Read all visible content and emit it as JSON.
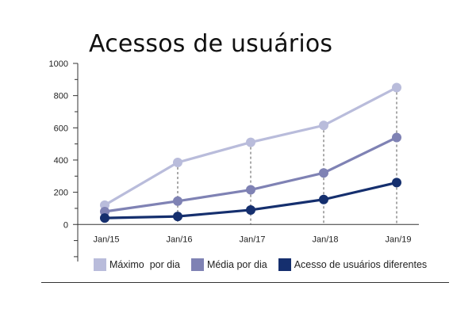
{
  "chart_data": {
    "type": "line",
    "title": "Acessos de usuários",
    "xlabel": "",
    "ylabel": "",
    "categories": [
      "Jan/15",
      "Jan/16",
      "Jan/17",
      "Jan/18",
      "Jan/19"
    ],
    "yticks": [
      "0",
      "200",
      "400",
      "600",
      "800",
      "1000"
    ],
    "ylim": [
      -230,
      1000
    ],
    "grid": false,
    "dashed_drop_lines": true,
    "legend_position": "bottom",
    "series": [
      {
        "name": "Máximo  por dia",
        "color": "#b9bcdb",
        "values": [
          120,
          385,
          510,
          615,
          850
        ]
      },
      {
        "name": "Média por dia",
        "color": "#7f82b4",
        "values": [
          80,
          145,
          215,
          320,
          540
        ]
      },
      {
        "name": "Acesso de usuários diferentes",
        "color": "#152f6e",
        "values": [
          40,
          50,
          90,
          155,
          260
        ]
      }
    ]
  }
}
